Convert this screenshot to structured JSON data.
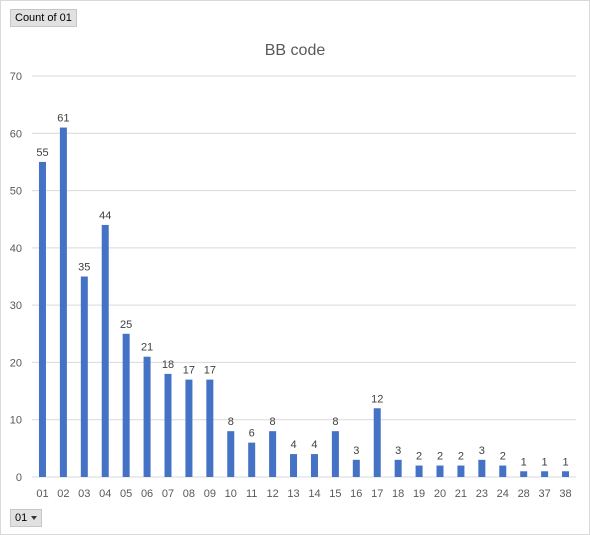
{
  "field_button": {
    "label": "Count of 01"
  },
  "filter_button": {
    "label": "01"
  },
  "chart_data": {
    "type": "bar",
    "title": "BB code",
    "categories": [
      "01",
      "02",
      "03",
      "04",
      "05",
      "06",
      "07",
      "08",
      "09",
      "10",
      "11",
      "12",
      "13",
      "14",
      "15",
      "16",
      "17",
      "18",
      "19",
      "20",
      "21",
      "23",
      "24",
      "28",
      "37",
      "38"
    ],
    "values": [
      55,
      61,
      35,
      44,
      25,
      21,
      18,
      17,
      17,
      8,
      6,
      8,
      4,
      4,
      8,
      3,
      12,
      3,
      2,
      2,
      2,
      3,
      2,
      1,
      1,
      1
    ],
    "ylim": [
      0,
      70
    ],
    "yticks": [
      0,
      10,
      20,
      30,
      40,
      50,
      60,
      70
    ],
    "grid": true,
    "bar_color": "#4472c4",
    "grid_color": "#d9d9d9"
  }
}
